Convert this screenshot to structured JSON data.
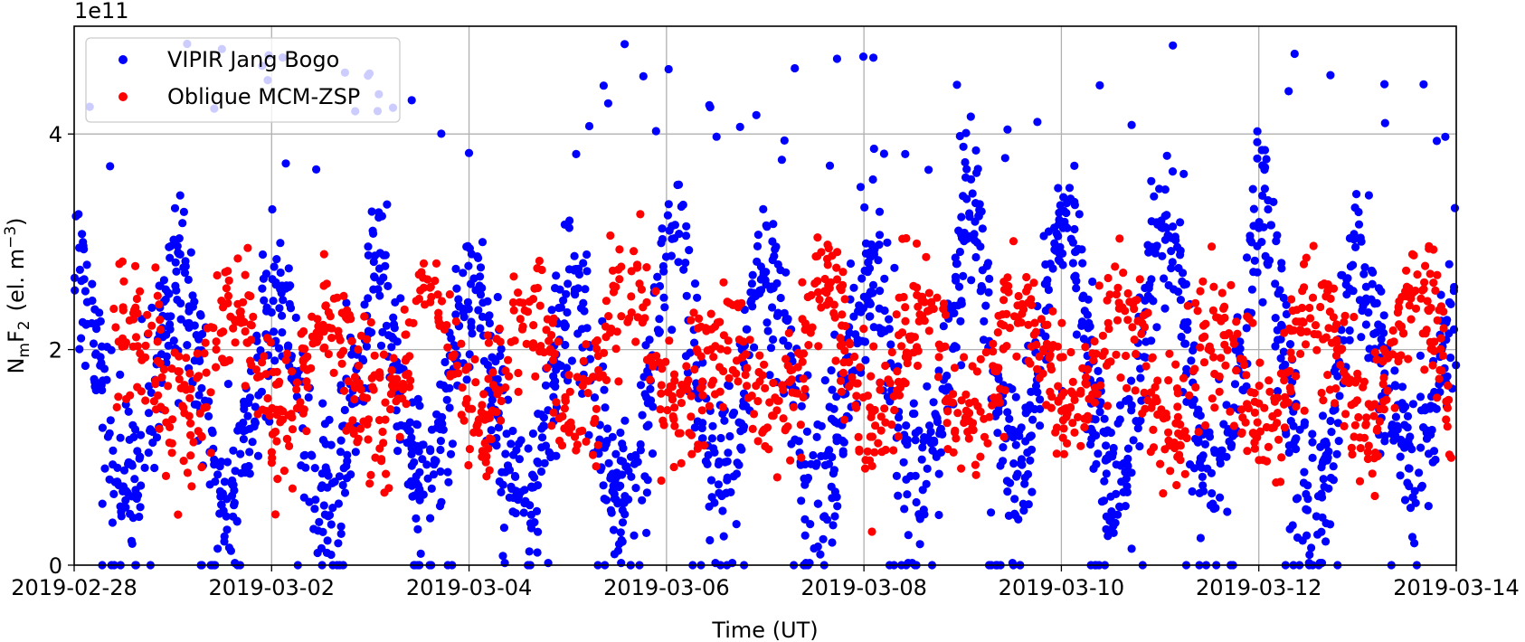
{
  "chart_data": {
    "type": "scatter",
    "xlabel": "Time  (UT)",
    "ylabel_main": "N",
    "ylabel_sub1": "m",
    "ylabel_mid": "F",
    "ylabel_sub2": "2",
    "ylabel_unit": "(el. m",
    "ylabel_exp": "−3",
    "ylabel_close": ")",
    "y_multiplier": "1e11",
    "xlim": [
      "2019-02-28",
      "2019-03-14"
    ],
    "ylim": [
      0,
      5
    ],
    "x_ticks": [
      "2019-02-28",
      "2019-03-02",
      "2019-03-04",
      "2019-03-06",
      "2019-03-08",
      "2019-03-10",
      "2019-03-12",
      "2019-03-14"
    ],
    "y_ticks": [
      0,
      2,
      4
    ],
    "y_tick_labels": [
      "0",
      "2",
      "4"
    ],
    "grid": true,
    "legend_position": "top-left",
    "series": [
      {
        "name": "VIPIR Jang Bogo",
        "color": "#0000ff",
        "description": "diurnal cycle, peaks ~2.5-3.5 near day start, troughs ~0.6-1.0; many zero values",
        "daily_peaks": [
          2.6,
          2.6,
          2.6,
          2.7,
          2.5,
          2.7,
          3.2,
          2.6,
          2.8,
          3.4,
          3.2,
          3.2,
          3.1,
          2.6,
          2.8
        ],
        "daily_troughs": [
          0.8,
          0.7,
          0.7,
          0.9,
          0.7,
          0.7,
          0.8,
          0.8,
          0.8,
          1.0,
          0.8,
          0.8,
          0.7,
          1.0
        ]
      },
      {
        "name": "Oblique MCM-ZSP",
        "color": "#ff0000",
        "description": "peaks ~2.5-3.0 mid-day, troughs ~1.2-1.5",
        "daily_peaks": [
          2.2,
          2.4,
          2.3,
          2.6,
          2.4,
          2.7,
          2.2,
          2.6,
          2.4,
          2.3,
          2.3,
          2.2,
          2.5,
          2.6
        ],
        "daily_troughs": [
          1.4,
          1.4,
          1.3,
          1.3,
          1.3,
          1.4,
          1.4,
          1.3,
          1.3,
          1.4,
          1.4,
          1.3,
          1.3,
          1.3
        ]
      }
    ]
  }
}
